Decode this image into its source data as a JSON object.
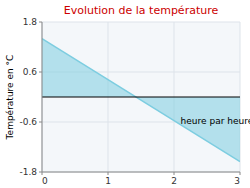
{
  "chart_data": {
    "type": "area",
    "title": "Evolution de la température",
    "ylabel": "Température en °C",
    "x": [
      0,
      3
    ],
    "values": [
      1.4,
      -1.55
    ],
    "color": "#7dcde0",
    "xlim": [
      0,
      3
    ],
    "ylim": [
      -1.8,
      1.8
    ],
    "xticks": [
      0,
      1,
      2,
      3
    ],
    "yticks": [
      -1.8,
      -0.6,
      0.6,
      1.8
    ],
    "grid": true,
    "annotations": [
      {
        "text": "heure par heure",
        "x": 2.1,
        "y": -0.58
      }
    ]
  }
}
